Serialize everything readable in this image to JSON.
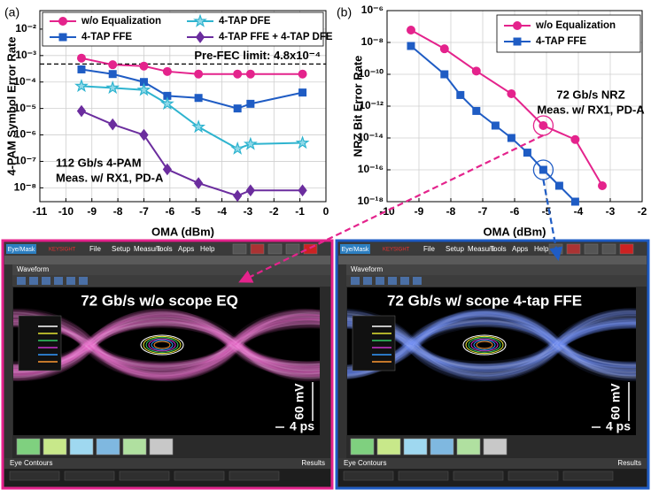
{
  "chart_data": [
    {
      "type": "line",
      "panel": "(a)",
      "xlabel": "OMA (dBm)",
      "ylabel": "4-PAM Symbol Error Rate",
      "xlim": [
        -11,
        0
      ],
      "xticks": [
        -11,
        -10,
        -9,
        -8,
        -7,
        -6,
        -5,
        -4,
        -3,
        -2,
        -1,
        0
      ],
      "ylim": [
        3e-09,
        0.05
      ],
      "log_y": true,
      "grid": true,
      "legend": "upper center",
      "yticks": [
        {
          "value": 1e-08,
          "label": "10⁻⁸"
        },
        {
          "value": 1e-07,
          "label": "10⁻⁷"
        },
        {
          "value": 1e-06,
          "label": "10⁻⁶"
        },
        {
          "value": 1e-05,
          "label": "10⁻⁵"
        },
        {
          "value": 0.0001,
          "label": "10⁻⁴"
        },
        {
          "value": 0.001,
          "label": "10⁻³"
        },
        {
          "value": 0.01,
          "label": "10⁻²"
        }
      ],
      "series": [
        {
          "name": "w/o Equalization",
          "color": "#e4238c",
          "marker": "circle",
          "x": [
            -9.4,
            -8.2,
            -7.0,
            -6.1,
            -4.9,
            -3.4,
            -2.9,
            -0.9
          ],
          "values": [
            0.0008,
            0.00045,
            0.0004,
            0.00025,
            0.0002,
            0.0002,
            0.0002,
            0.0002
          ]
        },
        {
          "name": "4-TAP FFE",
          "color": "#1f5cc4",
          "marker": "square",
          "x": [
            -9.4,
            -8.2,
            -7.0,
            -6.1,
            -4.9,
            -3.4,
            -2.9,
            -0.9
          ],
          "values": [
            0.0003,
            0.0002,
            0.0001,
            3e-05,
            2.5e-05,
            1e-05,
            1.5e-05,
            4e-05
          ]
        },
        {
          "name": "4-TAP DFE",
          "color": "#2fb4cf",
          "marker": "star",
          "x": [
            -9.4,
            -8.2,
            -7.0,
            -6.1,
            -4.9,
            -3.4,
            -2.9,
            -0.9
          ],
          "values": [
            7e-05,
            6e-05,
            5e-05,
            1.5e-05,
            2e-06,
            3e-07,
            4.5e-07,
            5e-07
          ]
        },
        {
          "name": "4-TAP FFE + 4-TAP DFE",
          "color": "#6b2d9e",
          "marker": "diamond",
          "x": [
            -9.4,
            -8.2,
            -7.0,
            -6.1,
            -4.9,
            -3.4,
            -2.9,
            -0.9
          ],
          "values": [
            8e-06,
            2.5e-06,
            1e-06,
            5e-08,
            1.5e-08,
            5e-09,
            8e-09,
            8e-09
          ]
        }
      ],
      "hlines": [
        {
          "value": 0.00048,
          "label": "Pre-FEC limit: 4.8x10⁻⁴"
        }
      ],
      "annotations": [
        "112 Gb/s 4-PAM",
        "Meas. w/ RX1, PD-A"
      ]
    },
    {
      "type": "line",
      "panel": "(b)",
      "xlabel": "OMA (dBm)",
      "ylabel": "NRZ Bit Error Rate",
      "xlim": [
        -10,
        -2
      ],
      "xticks": [
        -10,
        -9,
        -8,
        -7,
        -6,
        -5,
        -4,
        -3,
        -2
      ],
      "ylim": [
        1e-18,
        1e-06
      ],
      "log_y": true,
      "grid": true,
      "legend": "upper right",
      "yticks": [
        {
          "value": 1e-18,
          "label": "10⁻¹⁸"
        },
        {
          "value": 1e-16,
          "label": "10⁻¹⁶"
        },
        {
          "value": 1e-14,
          "label": "10⁻¹⁴"
        },
        {
          "value": 1e-12,
          "label": "10⁻¹²"
        },
        {
          "value": 1e-10,
          "label": "10⁻¹⁰"
        },
        {
          "value": 1e-08,
          "label": "10⁻⁸"
        },
        {
          "value": 1e-06,
          "label": "10⁻⁶"
        }
      ],
      "series": [
        {
          "name": "w/o Equalization",
          "color": "#e4238c",
          "marker": "circle",
          "x": [
            -9.25,
            -8.2,
            -7.2,
            -6.1,
            -5.1,
            -4.1,
            -3.25
          ],
          "values": [
            6e-08,
            4e-09,
            1.6e-10,
            6e-12,
            6e-14,
            8e-15,
            1e-17
          ]
        },
        {
          "name": "4-TAP FFE",
          "color": "#1f5cc4",
          "marker": "square",
          "x": [
            -9.25,
            -8.2,
            -7.7,
            -7.2,
            -6.6,
            -6.1,
            -5.6,
            -5.1,
            -4.6,
            -4.1
          ],
          "values": [
            6e-09,
            1e-10,
            5e-12,
            5e-13,
            6e-14,
            1e-14,
            1.2e-15,
            1e-16,
            1e-17,
            1e-18
          ]
        }
      ],
      "annotations": [
        "72 Gb/s NRZ",
        "Meas. w/ RX1, PD-A"
      ]
    }
  ],
  "screenshots": [
    {
      "app_tab": "Eye/Mask",
      "brand": "KEYSIGHT",
      "menu": [
        "File",
        "Setup",
        "Measure",
        "Tools",
        "Apps",
        "Help"
      ],
      "tab": "Waveform",
      "title": "72 Gb/s w/o scope EQ",
      "vertical_scale": "60 mV",
      "time_scale": "4 ps",
      "bottom_left": "Eye Contours",
      "bottom_right": "Results"
    },
    {
      "app_tab": "Eye/Mask",
      "brand": "KEYSIGHT",
      "menu": [
        "File",
        "Setup",
        "Measure",
        "Tools",
        "Apps",
        "Help"
      ],
      "tab": "Waveform",
      "title": "72 Gb/s w/ scope 4-tap FFE",
      "vertical_scale": "60 mV",
      "time_scale": "4 ps",
      "bottom_left": "Eye Contours",
      "bottom_right": "Results"
    }
  ]
}
